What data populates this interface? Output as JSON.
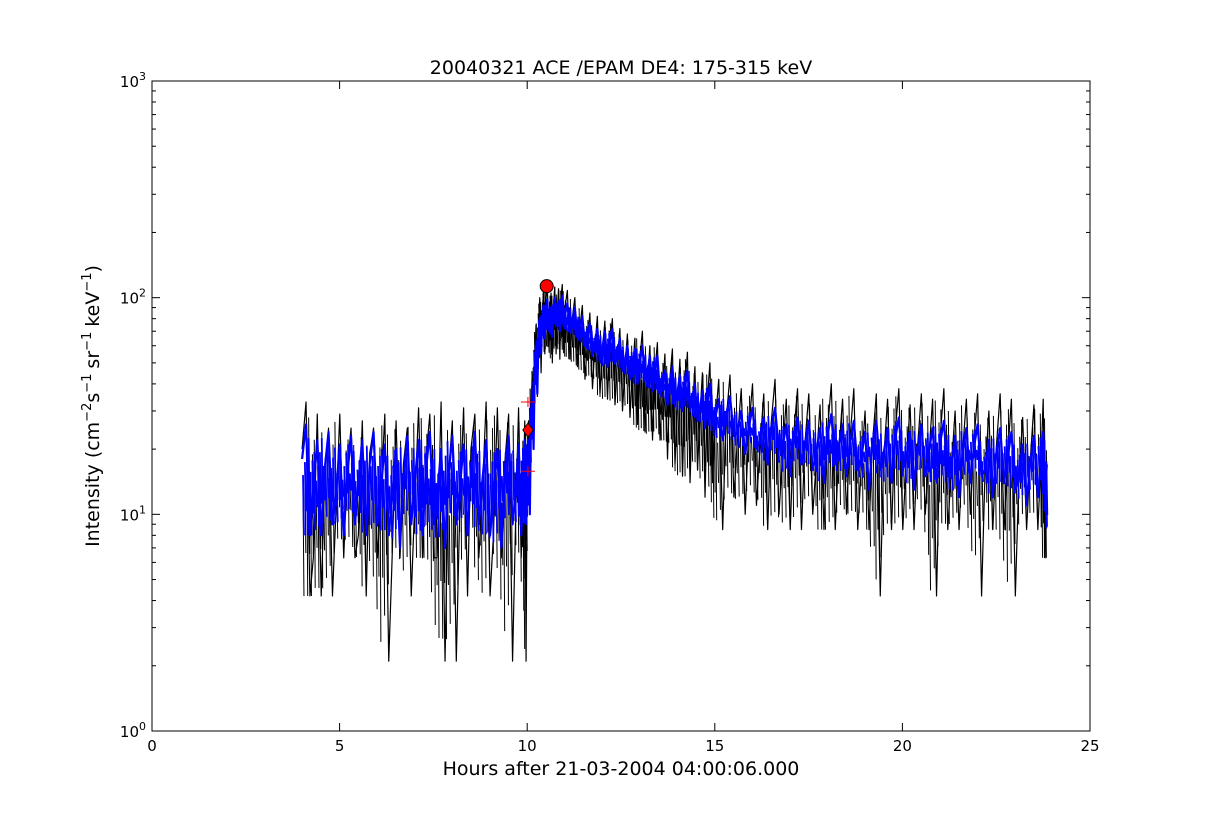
{
  "chart_data": {
    "type": "line",
    "title": "20040321 ACE /EPAM DE4: 175-315 keV",
    "xlabel": "Hours after 21-03-2004 04:00:06.000",
    "ylabel": {
      "prefix": "Intensity (cm",
      "exp1": "−2",
      "mid1": "s",
      "exp2": "−1",
      "mid2": "sr",
      "exp3": "−1",
      "mid3": "keV",
      "exp4": "−1",
      "suffix": ")"
    },
    "xlim": [
      0,
      25
    ],
    "ylim": [
      1,
      1000
    ],
    "yscale": "log",
    "grid": false,
    "xticks": [
      {
        "value": 0,
        "label": "0"
      },
      {
        "value": 5,
        "label": "5"
      },
      {
        "value": 10,
        "label": "10"
      },
      {
        "value": 15,
        "label": "15"
      },
      {
        "value": 20,
        "label": "20"
      },
      {
        "value": 25,
        "label": "25"
      }
    ],
    "yticks": [
      {
        "value": 1,
        "base": "10",
        "exp": "0"
      },
      {
        "value": 10,
        "base": "10",
        "exp": "1"
      },
      {
        "value": 100,
        "base": "10",
        "exp": "2"
      },
      {
        "value": 1000,
        "base": "10",
        "exp": "3"
      }
    ],
    "series": [
      {
        "role": "raw",
        "color": "#000000",
        "x": [
          4.0,
          4.3,
          4.6,
          4.9,
          5.2,
          5.5,
          5.8,
          6.1,
          6.4,
          6.7,
          7.0,
          7.3,
          7.6,
          7.9,
          8.2,
          8.5,
          8.8,
          9.1,
          9.4,
          9.7,
          9.9,
          10.0,
          10.1,
          10.2,
          10.3,
          10.4,
          10.5,
          10.6,
          10.7,
          10.8,
          10.9,
          11.0,
          11.2,
          11.4,
          11.6,
          11.8,
          12.0,
          12.2,
          12.4,
          12.6,
          12.8,
          13.0,
          13.2,
          13.4,
          13.6,
          13.8,
          14.0,
          14.2,
          14.4,
          14.6,
          14.8,
          15.0,
          15.3,
          15.6,
          15.9,
          16.2,
          16.5,
          16.8,
          17.1,
          17.4,
          17.7,
          18.0,
          18.3,
          18.6,
          18.9,
          19.2,
          19.5,
          19.8,
          20.1,
          20.4,
          20.7,
          21.0,
          21.3,
          21.6,
          21.9,
          22.2,
          22.5,
          22.8,
          23.1,
          23.4,
          23.7,
          23.85
        ],
        "y": [
          20,
          6.3,
          14,
          10,
          16,
          8,
          19,
          12,
          6.3,
          17,
          11,
          18,
          6.3,
          15,
          10,
          20,
          12,
          8,
          17,
          11,
          14,
          18,
          30,
          52,
          72,
          80,
          98,
          70,
          92,
          85,
          100,
          88,
          80,
          72,
          60,
          58,
          56,
          62,
          50,
          46,
          44,
          52,
          40,
          45,
          36,
          42,
          32,
          38,
          30,
          28,
          34,
          25,
          27,
          22,
          24,
          20,
          26,
          18,
          23,
          21,
          17,
          24,
          19,
          22,
          16,
          21,
          18,
          23,
          17,
          20,
          18,
          22,
          16,
          19,
          21,
          15,
          20,
          18,
          14,
          17,
          19,
          16
        ],
        "min": [
          4.2,
          4.2,
          4.2,
          6.3,
          6.3,
          4.2,
          6.3,
          2.1,
          6.3,
          4.2,
          6.3,
          6.3,
          2.1,
          2.1,
          4.2,
          6.3,
          4.2,
          6.3,
          2.1,
          6.3,
          2.1,
          10,
          20,
          35,
          45,
          55,
          60,
          50,
          55,
          52,
          58,
          52,
          48,
          42,
          38,
          36,
          34,
          32,
          30,
          28,
          26,
          24,
          22,
          22,
          18,
          17,
          15,
          14,
          16,
          12,
          14,
          8.5,
          12,
          10,
          11,
          8.5,
          10,
          8.5,
          8.5,
          10,
          8.5,
          8.5,
          10,
          8.5,
          8.5,
          4.2,
          8.5,
          8.5,
          8.5,
          10,
          4.2,
          8.5,
          8.5,
          10,
          4.2,
          8.5,
          8.5,
          4.2,
          8.5,
          8.5,
          6.3,
          6.3
        ],
        "max": [
          33,
          29,
          25,
          29,
          25,
          27,
          25,
          29,
          27,
          25,
          31,
          29,
          33,
          27,
          31,
          29,
          33,
          31,
          29,
          31,
          27,
          27,
          45,
          75,
          100,
          110,
          118,
          105,
          112,
          110,
          115,
          108,
          100,
          92,
          85,
          82,
          78,
          80,
          72,
          68,
          65,
          70,
          60,
          62,
          55,
          58,
          52,
          56,
          48,
          45,
          50,
          42,
          44,
          38,
          40,
          36,
          42,
          34,
          38,
          36,
          32,
          40,
          34,
          38,
          30,
          36,
          34,
          38,
          32,
          36,
          34,
          38,
          30,
          34,
          36,
          30,
          36,
          34,
          28,
          32,
          34,
          27
        ]
      },
      {
        "role": "smoothed",
        "color": "#0000ff",
        "x": [
          4.0,
          4.3,
          4.6,
          4.9,
          5.2,
          5.5,
          5.8,
          6.1,
          6.4,
          6.7,
          7.0,
          7.3,
          7.6,
          7.9,
          8.2,
          8.5,
          8.8,
          9.1,
          9.4,
          9.7,
          9.9,
          10.0,
          10.1,
          10.2,
          10.3,
          10.4,
          10.5,
          10.6,
          10.7,
          10.8,
          10.9,
          11.0,
          11.2,
          11.4,
          11.6,
          11.8,
          12.0,
          12.2,
          12.4,
          12.6,
          12.8,
          13.0,
          13.2,
          13.4,
          13.6,
          13.8,
          14.0,
          14.2,
          14.4,
          14.6,
          14.8,
          15.0,
          15.3,
          15.6,
          15.9,
          16.2,
          16.5,
          16.8,
          17.1,
          17.4,
          17.7,
          18.0,
          18.3,
          18.6,
          18.9,
          19.2,
          19.5,
          19.8,
          20.1,
          20.4,
          20.7,
          21.0,
          21.3,
          21.6,
          21.9,
          22.2,
          22.5,
          22.8,
          23.1,
          23.4,
          23.7,
          23.85
        ],
        "y": [
          18,
          13,
          16,
          12,
          15,
          14,
          17,
          13,
          12,
          15,
          14,
          16,
          12,
          15,
          13,
          16,
          14,
          12,
          15,
          13,
          14,
          16,
          28,
          48,
          68,
          80,
          86,
          78,
          88,
          84,
          90,
          82,
          78,
          70,
          64,
          60,
          58,
          60,
          54,
          50,
          48,
          50,
          44,
          44,
          38,
          40,
          36,
          38,
          32,
          30,
          32,
          27,
          28,
          24,
          25,
          22,
          25,
          20,
          22,
          21,
          19,
          23,
          20,
          21,
          18,
          21,
          19,
          22,
          18,
          20,
          19,
          21,
          17,
          19,
          20,
          16,
          19,
          18,
          15,
          17,
          18,
          17
        ],
        "min": [
          8,
          8,
          9,
          8,
          9,
          8,
          9,
          8,
          7,
          9,
          8,
          9,
          7,
          9,
          8,
          9,
          8,
          7,
          9,
          8,
          9,
          10,
          20,
          36,
          55,
          65,
          72,
          66,
          74,
          70,
          76,
          70,
          66,
          60,
          54,
          52,
          48,
          50,
          46,
          42,
          40,
          42,
          37,
          36,
          32,
          33,
          30,
          31,
          27,
          25,
          26,
          22,
          23,
          19,
          20,
          17,
          20,
          15,
          17,
          16,
          14,
          17,
          15,
          16,
          13,
          16,
          14,
          16,
          13,
          15,
          14,
          15,
          12,
          14,
          15,
          12,
          14,
          13,
          11,
          12,
          13,
          7.5
        ],
        "max": [
          26,
          22,
          24,
          21,
          23,
          22,
          24,
          21,
          20,
          23,
          22,
          24,
          20,
          23,
          21,
          24,
          22,
          20,
          23,
          21,
          22,
          22,
          36,
          60,
          80,
          92,
          98,
          90,
          100,
          96,
          102,
          94,
          90,
          82,
          76,
          72,
          70,
          72,
          65,
          60,
          58,
          60,
          54,
          54,
          46,
          48,
          44,
          46,
          40,
          37,
          40,
          34,
          35,
          30,
          31,
          28,
          31,
          26,
          28,
          27,
          25,
          29,
          26,
          27,
          24,
          27,
          25,
          28,
          24,
          26,
          25,
          27,
          23,
          25,
          26,
          22,
          25,
          24,
          21,
          23,
          24,
          22
        ]
      }
    ],
    "markers": [
      {
        "type": "circle",
        "x": 10.52,
        "y": 113,
        "color": "#ff0000"
      },
      {
        "type": "diamond",
        "x": 10.02,
        "y": 24.5,
        "color": "#ff0000"
      },
      {
        "type": "plus",
        "x": 10.02,
        "y": 33,
        "color": "#ff0000"
      },
      {
        "type": "plus",
        "x": 10.02,
        "y": 15.8,
        "color": "#ff0000"
      }
    ]
  }
}
